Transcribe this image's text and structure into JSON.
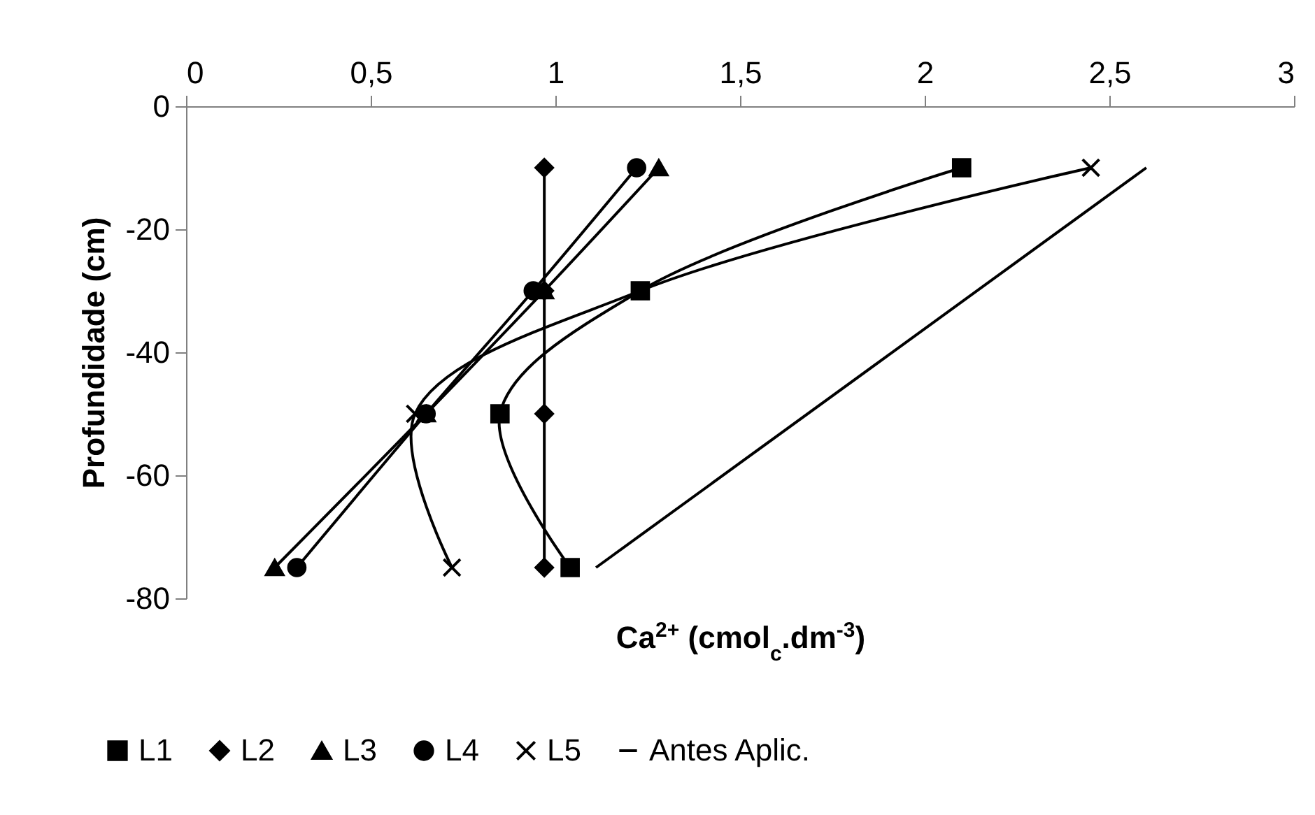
{
  "chart_data": {
    "type": "line",
    "xlabel": "Ca$^{2+}$ (cmol$_{c}$.dm$^{-3}$)",
    "ylabel": "Profundidade (cm)",
    "xlim": [
      0,
      3
    ],
    "xticks": [
      0,
      {
        "value": 0.5,
        "label": "0,5"
      },
      1,
      {
        "value": 1.5,
        "label": "1,5"
      },
      2,
      {
        "value": 2.5,
        "label": "2,5"
      },
      3
    ],
    "ylim": [
      -80,
      0
    ],
    "yticks": [
      -80,
      -60,
      -40,
      -20,
      0
    ],
    "grid": false,
    "legend": "bottom",
    "series": [
      {
        "name": "L1",
        "color": "#000000",
        "marker": "square",
        "x": [
          2.1,
          1.23,
          0.85,
          1.04
        ],
        "values": [
          -10,
          -30,
          -50,
          -75
        ]
      },
      {
        "name": "L2",
        "color": "#000000",
        "marker": "diamond",
        "x": [
          0.97,
          0.97,
          0.97,
          0.97
        ],
        "values": [
          -10,
          -30,
          -50,
          -75
        ]
      },
      {
        "name": "L3",
        "color": "#000000",
        "marker": "triangle",
        "x": [
          1.28,
          0.97,
          0.65,
          0.24
        ],
        "values": [
          -10,
          -30,
          -50,
          -75
        ]
      },
      {
        "name": "L4",
        "color": "#000000",
        "marker": "circle",
        "x": [
          1.22,
          0.94,
          0.65,
          0.3
        ],
        "values": [
          -10,
          -30,
          -50,
          -75
        ]
      },
      {
        "name": "L5",
        "color": "#000000",
        "marker": "cross",
        "x": [
          2.45,
          1.23,
          0.62,
          0.72
        ],
        "values": [
          -10,
          -30,
          -50,
          -75
        ]
      },
      {
        "name": "Antes Aplic.",
        "color": "#000000",
        "marker": "none",
        "x": [
          2.6,
          1.11
        ],
        "values": [
          -10,
          -75
        ]
      }
    ]
  }
}
